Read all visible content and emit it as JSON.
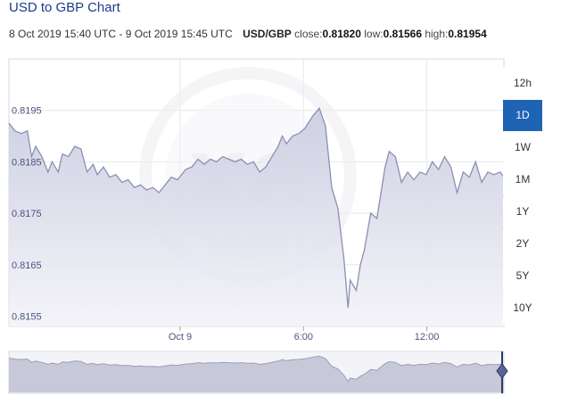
{
  "header": {
    "title": "USD to GBP Chart",
    "range": "8 Oct 2019 15:40 UTC - 9 Oct 2019 15:45 UTC",
    "pair": "USD/GBP",
    "close_label": "close:",
    "close_value": "0.81820",
    "low_label": "low:",
    "low_value": "0.81566",
    "high_label": "high:",
    "high_value": "0.81954"
  },
  "range_buttons": [
    {
      "label": "12h",
      "active": false
    },
    {
      "label": "1D",
      "active": true
    },
    {
      "label": "1W",
      "active": false
    },
    {
      "label": "1M",
      "active": false
    },
    {
      "label": "1Y",
      "active": false
    },
    {
      "label": "2Y",
      "active": false
    },
    {
      "label": "5Y",
      "active": false
    },
    {
      "label": "10Y",
      "active": false
    }
  ],
  "colors": {
    "line": "#8a90b0",
    "fill_top": "#c9cbe0",
    "fill_bottom": "#f3f3f8",
    "active_button": "#1f64b4",
    "grid": "#e6e6ee"
  },
  "chart_data": {
    "type": "area",
    "title": "",
    "xlabel": "",
    "ylabel": "",
    "x_unit": "hours from 8 Oct 2019 15:40 UTC",
    "xlim": [
      0,
      24.08
    ],
    "ylim": [
      0.8153,
      0.8205
    ],
    "yticks": [
      {
        "value": 0.8195,
        "label": "0.8195"
      },
      {
        "value": 0.8185,
        "label": "0.8185"
      },
      {
        "value": 0.8175,
        "label": "0.8175"
      },
      {
        "value": 0.8165,
        "label": "0.8165"
      },
      {
        "value": 0.8155,
        "label": "0.8155"
      }
    ],
    "xticks": [
      {
        "value": 8.33,
        "label": "Oct 9"
      },
      {
        "value": 14.33,
        "label": "6:00"
      },
      {
        "value": 20.33,
        "label": "12:00"
      }
    ],
    "grid": true,
    "watermark": "xe",
    "series": [
      {
        "values": [
          [
            0,
            0.81925
          ],
          [
            0.3,
            0.8191
          ],
          [
            0.6,
            0.81905
          ],
          [
            0.9,
            0.8191
          ],
          [
            1.1,
            0.8186
          ],
          [
            1.3,
            0.8188
          ],
          [
            1.6,
            0.8186
          ],
          [
            1.9,
            0.8183
          ],
          [
            2.1,
            0.8185
          ],
          [
            2.4,
            0.8183
          ],
          [
            2.6,
            0.81865
          ],
          [
            2.9,
            0.8186
          ],
          [
            3.2,
            0.8188
          ],
          [
            3.5,
            0.81875
          ],
          [
            3.8,
            0.8183
          ],
          [
            4.1,
            0.81845
          ],
          [
            4.3,
            0.81825
          ],
          [
            4.6,
            0.8184
          ],
          [
            4.9,
            0.8182
          ],
          [
            5.2,
            0.81825
          ],
          [
            5.5,
            0.8181
          ],
          [
            5.8,
            0.81815
          ],
          [
            6.1,
            0.818
          ],
          [
            6.4,
            0.81805
          ],
          [
            6.7,
            0.81795
          ],
          [
            7.0,
            0.818
          ],
          [
            7.3,
            0.8179
          ],
          [
            7.6,
            0.81805
          ],
          [
            7.9,
            0.8182
          ],
          [
            8.2,
            0.81815
          ],
          [
            8.6,
            0.81835
          ],
          [
            8.9,
            0.8184
          ],
          [
            9.2,
            0.81855
          ],
          [
            9.5,
            0.81845
          ],
          [
            9.8,
            0.81855
          ],
          [
            10.1,
            0.8185
          ],
          [
            10.4,
            0.8186
          ],
          [
            10.7,
            0.81855
          ],
          [
            11.0,
            0.8185
          ],
          [
            11.3,
            0.81855
          ],
          [
            11.6,
            0.81845
          ],
          [
            11.9,
            0.8185
          ],
          [
            12.2,
            0.8183
          ],
          [
            12.5,
            0.8184
          ],
          [
            12.8,
            0.8186
          ],
          [
            13.1,
            0.8188
          ],
          [
            13.3,
            0.819
          ],
          [
            13.5,
            0.81885
          ],
          [
            13.8,
            0.819
          ],
          [
            14.1,
            0.81905
          ],
          [
            14.4,
            0.81915
          ],
          [
            14.8,
            0.8194
          ],
          [
            15.1,
            0.81954
          ],
          [
            15.4,
            0.8192
          ],
          [
            15.7,
            0.818
          ],
          [
            16.0,
            0.8176
          ],
          [
            16.3,
            0.8166
          ],
          [
            16.5,
            0.81566
          ],
          [
            16.6,
            0.8162
          ],
          [
            16.9,
            0.816
          ],
          [
            17.1,
            0.8165
          ],
          [
            17.3,
            0.8168
          ],
          [
            17.6,
            0.8175
          ],
          [
            17.9,
            0.8174
          ],
          [
            18.1,
            0.8179
          ],
          [
            18.3,
            0.8184
          ],
          [
            18.5,
            0.8187
          ],
          [
            18.8,
            0.8186
          ],
          [
            19.1,
            0.8181
          ],
          [
            19.4,
            0.8183
          ],
          [
            19.7,
            0.81815
          ],
          [
            20.0,
            0.8183
          ],
          [
            20.3,
            0.81825
          ],
          [
            20.6,
            0.8185
          ],
          [
            20.9,
            0.81835
          ],
          [
            21.2,
            0.8186
          ],
          [
            21.5,
            0.8184
          ],
          [
            21.8,
            0.8179
          ],
          [
            22.1,
            0.8183
          ],
          [
            22.4,
            0.8182
          ],
          [
            22.7,
            0.8185
          ],
          [
            23.0,
            0.8181
          ],
          [
            23.3,
            0.8183
          ],
          [
            23.6,
            0.81825
          ],
          [
            23.9,
            0.8183
          ],
          [
            24.08,
            0.8182
          ]
        ]
      }
    ]
  }
}
